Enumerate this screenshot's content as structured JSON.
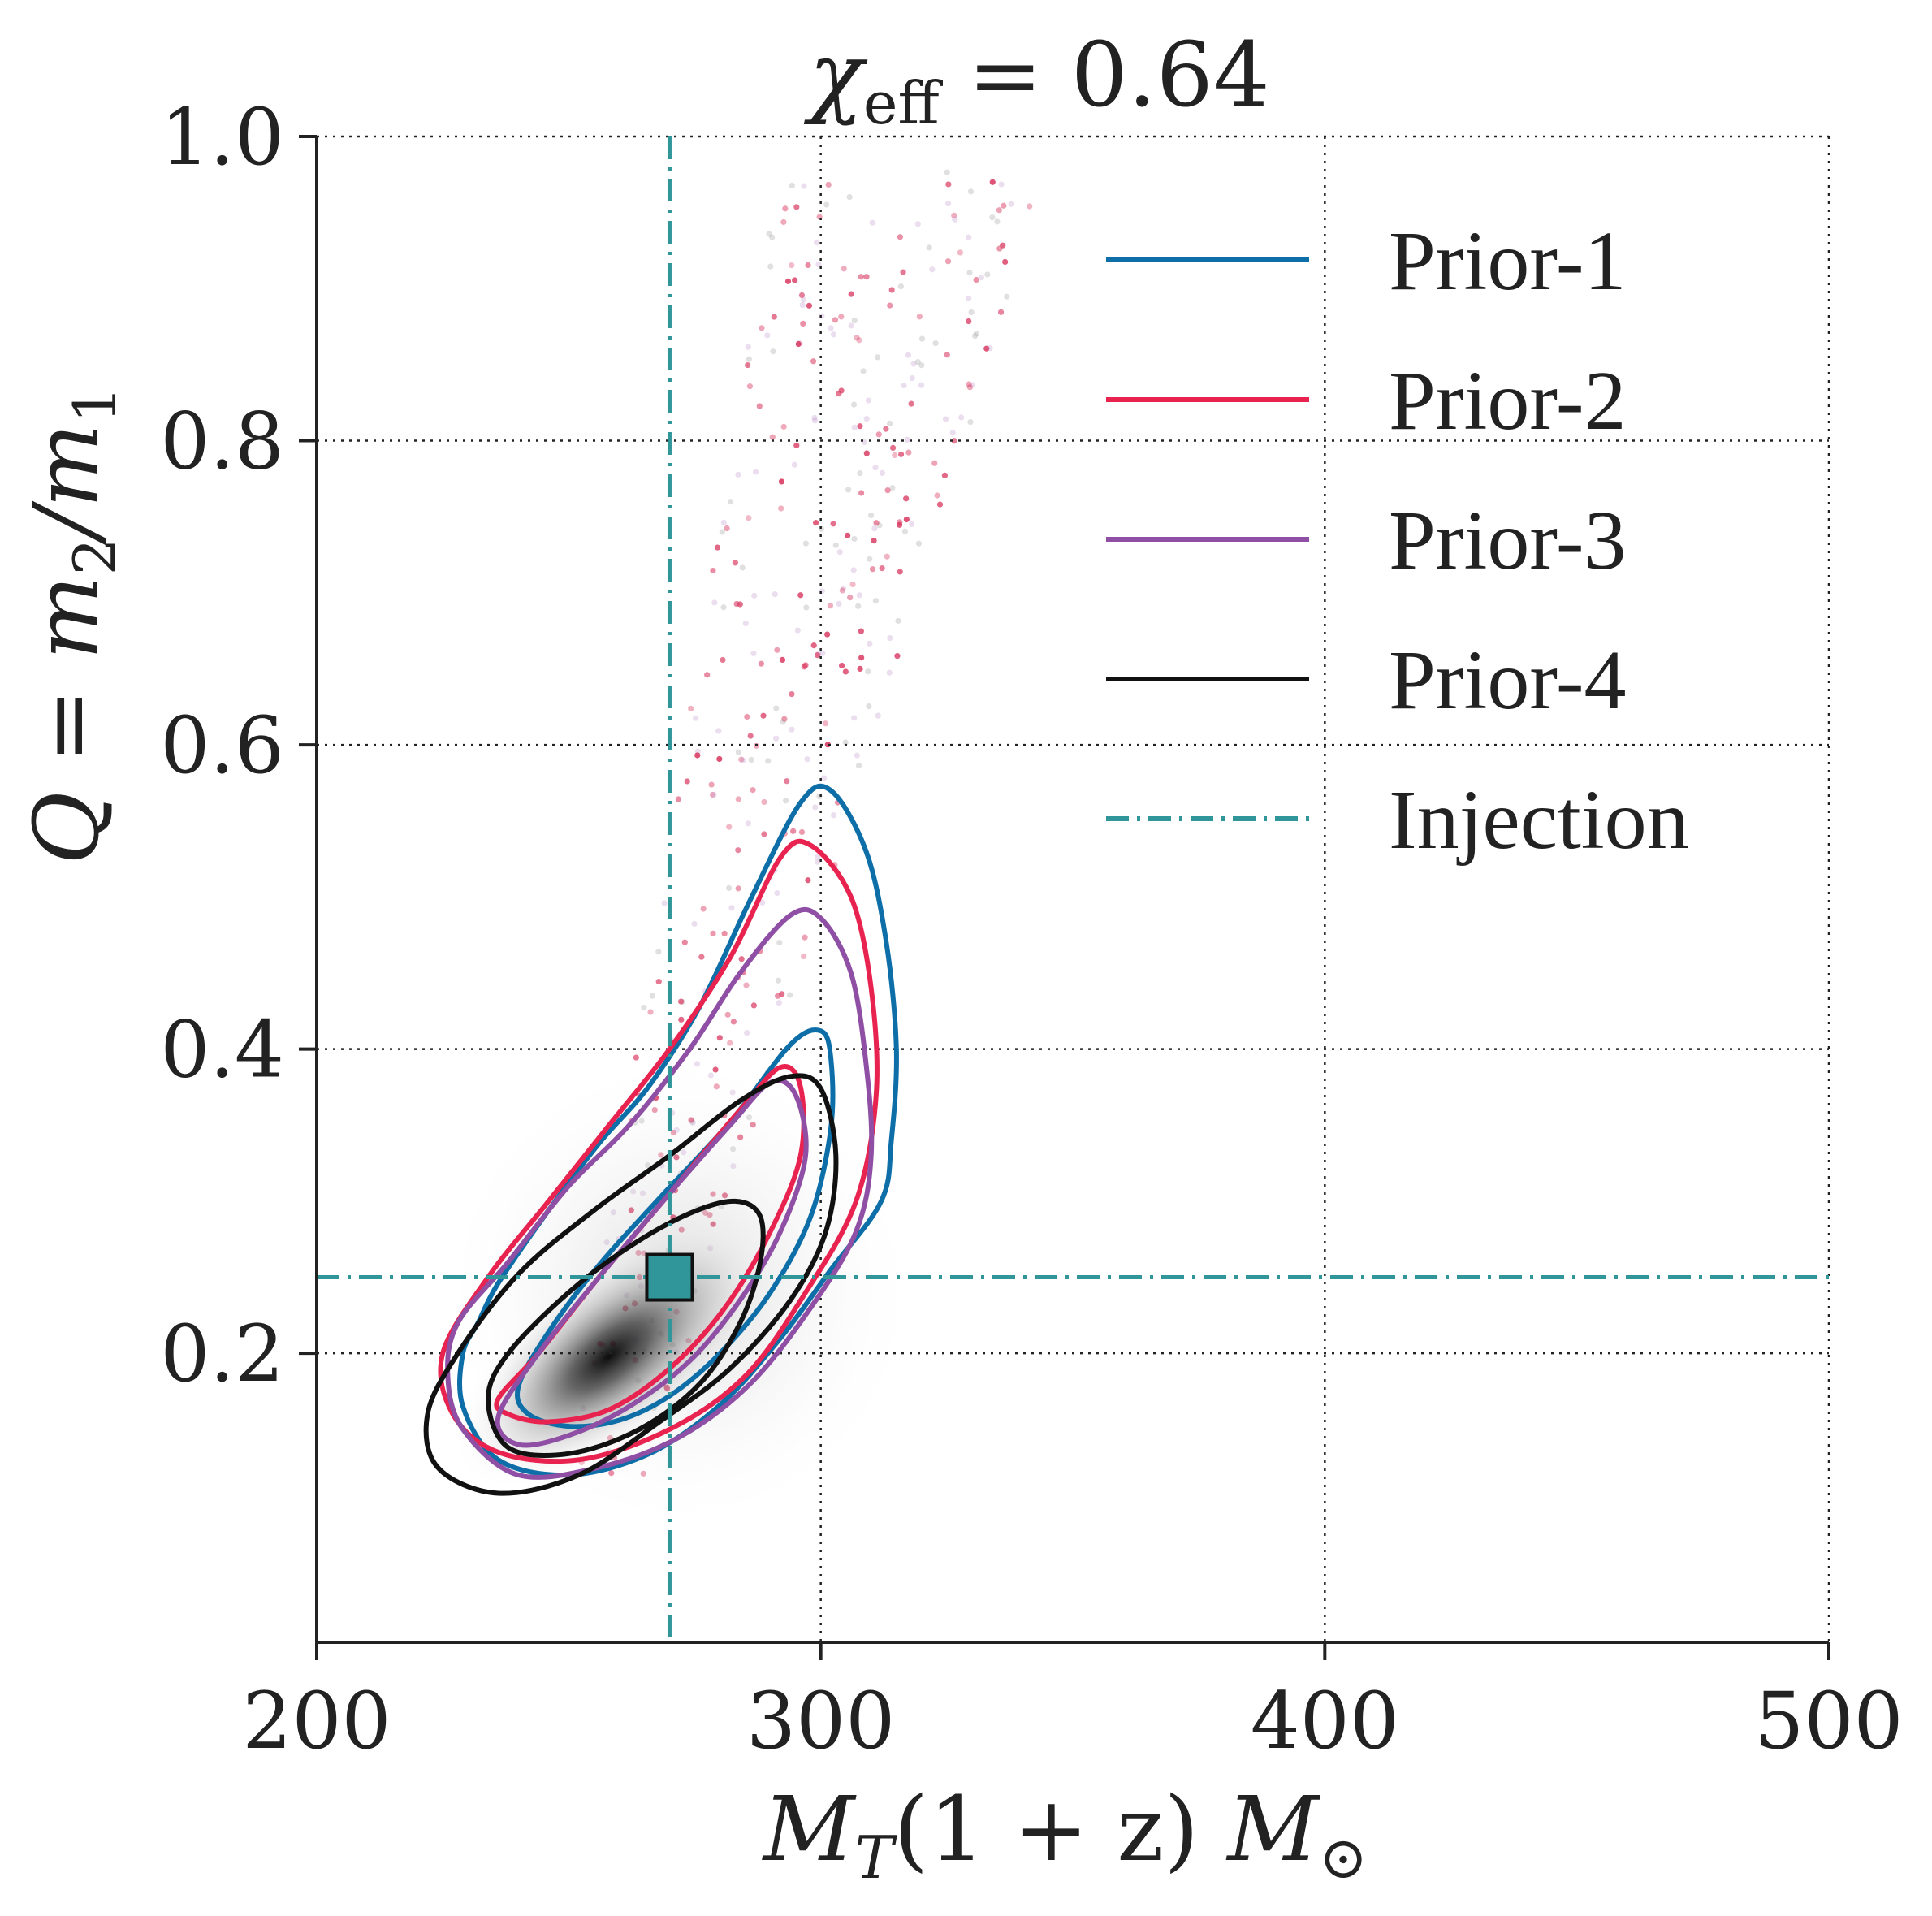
{
  "chart_data": {
    "type": "scatter",
    "title": "χ_eff = 0.64",
    "title_parts": {
      "symbol": "χ",
      "subscript": "eff",
      "rest": " = 0.64"
    },
    "xlabel": "M_T(1 + z) M_⊙",
    "xlabel_parts": {
      "a": "M",
      "a_sub": "T",
      "b": "(1 + z) ",
      "c": "M",
      "c_sub": "⊙"
    },
    "ylabel": "Q = m_2/m_1",
    "ylabel_parts": {
      "a": "Q = m",
      "a_sub": "2",
      "b": "/m",
      "b_sub": "1"
    },
    "xlim": [
      200,
      500
    ],
    "ylim": [
      0.01,
      1.0
    ],
    "xticks": [
      200,
      300,
      400,
      500
    ],
    "xtick_labels": [
      "200",
      "300",
      "400",
      "500"
    ],
    "yticks": [
      0.2,
      0.4,
      0.6,
      0.8,
      1.0
    ],
    "ytick_labels": [
      "0.2",
      "0.4",
      "0.6",
      "0.8",
      "1.0"
    ],
    "grid": true,
    "legend_position": "top-right",
    "injection": {
      "x": 270,
      "y": 0.25,
      "color": "#31969A"
    },
    "series": [
      {
        "name": "Prior-1",
        "color": "#0E6FA8",
        "contours": [
          {
            "level": "outer",
            "points": [
              [
                232,
                0.22
              ],
              [
                236,
                0.246
              ],
              [
                246,
                0.294
              ],
              [
                256,
                0.338
              ],
              [
                266,
                0.376
              ],
              [
                276,
                0.428
              ],
              [
                286,
                0.498
              ],
              [
                296,
                0.562
              ],
              [
                302,
                0.57
              ],
              [
                309,
                0.53
              ],
              [
                313,
                0.47
              ],
              [
                315,
                0.4
              ],
              [
                314,
                0.34
              ],
              [
                312,
                0.3
              ],
              [
                302,
                0.255
              ],
              [
                292,
                0.21
              ],
              [
                280,
                0.166
              ],
              [
                266,
                0.134
              ],
              [
                250,
                0.12
              ],
              [
                236,
                0.13
              ],
              [
                229,
                0.165
              ],
              [
                229,
                0.2
              ]
            ]
          },
          {
            "level": "inner",
            "points": [
              [
                240,
                0.178
              ],
              [
                246,
                0.214
              ],
              [
                256,
                0.258
              ],
              [
                268,
                0.302
              ],
              [
                282,
                0.352
              ],
              [
                294,
                0.403
              ],
              [
                300,
                0.412
              ],
              [
                302,
                0.394
              ],
              [
                302,
                0.348
              ],
              [
                298,
                0.29
              ],
              [
                290,
                0.24
              ],
              [
                280,
                0.2
              ],
              [
                270,
                0.172
              ],
              [
                260,
                0.156
              ],
              [
                250,
                0.152
              ],
              [
                242,
                0.16
              ]
            ]
          }
        ]
      },
      {
        "name": "Prior-2",
        "color": "#E8234F",
        "contours": [
          {
            "level": "outer",
            "points": [
              [
                225,
                0.2
              ],
              [
                234,
                0.25
              ],
              [
                246,
                0.3
              ],
              [
                258,
                0.35
              ],
              [
                270,
                0.4
              ],
              [
                282,
                0.46
              ],
              [
                292,
                0.526
              ],
              [
                298,
                0.534
              ],
              [
                306,
                0.5
              ],
              [
                310,
                0.44
              ],
              [
                311,
                0.37
              ],
              [
                307,
                0.3
              ],
              [
                297,
                0.24
              ],
              [
                285,
                0.185
              ],
              [
                270,
                0.15
              ],
              [
                252,
                0.13
              ],
              [
                236,
                0.135
              ],
              [
                227,
                0.16
              ]
            ]
          },
          {
            "level": "inner",
            "points": [
              [
                236,
                0.17
              ],
              [
                244,
                0.2
              ],
              [
                256,
                0.25
              ],
              [
                270,
                0.305
              ],
              [
                284,
                0.36
              ],
              [
                292,
                0.388
              ],
              [
                296,
                0.375
              ],
              [
                296,
                0.33
              ],
              [
                290,
                0.28
              ],
              [
                281,
                0.23
              ],
              [
                270,
                0.19
              ],
              [
                258,
                0.163
              ],
              [
                246,
                0.155
              ],
              [
                238,
                0.16
              ]
            ]
          }
        ]
      },
      {
        "name": "Prior-3",
        "color": "#8E4FA4",
        "contours": [
          {
            "level": "outer",
            "points": [
              [
                228,
                0.22
              ],
              [
                238,
                0.26
              ],
              [
                250,
                0.31
              ],
              [
                262,
                0.35
              ],
              [
                274,
                0.4
              ],
              [
                284,
                0.45
              ],
              [
                294,
                0.488
              ],
              [
                300,
                0.486
              ],
              [
                306,
                0.45
              ],
              [
                309,
                0.39
              ],
              [
                310,
                0.33
              ],
              [
                307,
                0.28
              ],
              [
                298,
                0.23
              ],
              [
                286,
                0.18
              ],
              [
                272,
                0.145
              ],
              [
                256,
                0.125
              ],
              [
                240,
                0.12
              ],
              [
                229,
                0.15
              ],
              [
                226,
                0.185
              ]
            ]
          },
          {
            "level": "inner",
            "points": [
              [
                236,
                0.158
              ],
              [
                244,
                0.2
              ],
              [
                256,
                0.25
              ],
              [
                270,
                0.305
              ],
              [
                282,
                0.35
              ],
              [
                290,
                0.378
              ],
              [
                295,
                0.37
              ],
              [
                297,
                0.33
              ],
              [
                292,
                0.28
              ],
              [
                284,
                0.235
              ],
              [
                274,
                0.195
              ],
              [
                262,
                0.165
              ],
              [
                250,
                0.146
              ],
              [
                240,
                0.14
              ]
            ]
          }
        ]
      },
      {
        "name": "Prior-4",
        "color": "#111111",
        "contours": [
          {
            "level": "outer",
            "points": [
              [
                222,
                0.16
              ],
              [
                228,
                0.2
              ],
              [
                240,
                0.252
              ],
              [
                255,
                0.294
              ],
              [
                270,
                0.33
              ],
              [
                284,
                0.366
              ],
              [
                294,
                0.382
              ],
              [
                300,
                0.374
              ],
              [
                303,
                0.33
              ],
              [
                301,
                0.28
              ],
              [
                294,
                0.235
              ],
              [
                282,
                0.19
              ],
              [
                268,
                0.155
              ],
              [
                252,
                0.12
              ],
              [
                236,
                0.108
              ],
              [
                224,
                0.125
              ]
            ]
          },
          {
            "level": "inner",
            "points": [
              [
                234,
                0.17
              ],
              [
                238,
                0.2
              ],
              [
                250,
                0.24
              ],
              [
                262,
                0.27
              ],
              [
                274,
                0.292
              ],
              [
                283,
                0.3
              ],
              [
                288,
                0.29
              ],
              [
                288,
                0.26
              ],
              [
                284,
                0.22
              ],
              [
                276,
                0.18
              ],
              [
                264,
                0.15
              ],
              [
                250,
                0.134
              ],
              [
                238,
                0.138
              ]
            ]
          }
        ]
      },
      {
        "name": "Injection",
        "color": "#31969A",
        "style": "dashdot"
      }
    ]
  }
}
